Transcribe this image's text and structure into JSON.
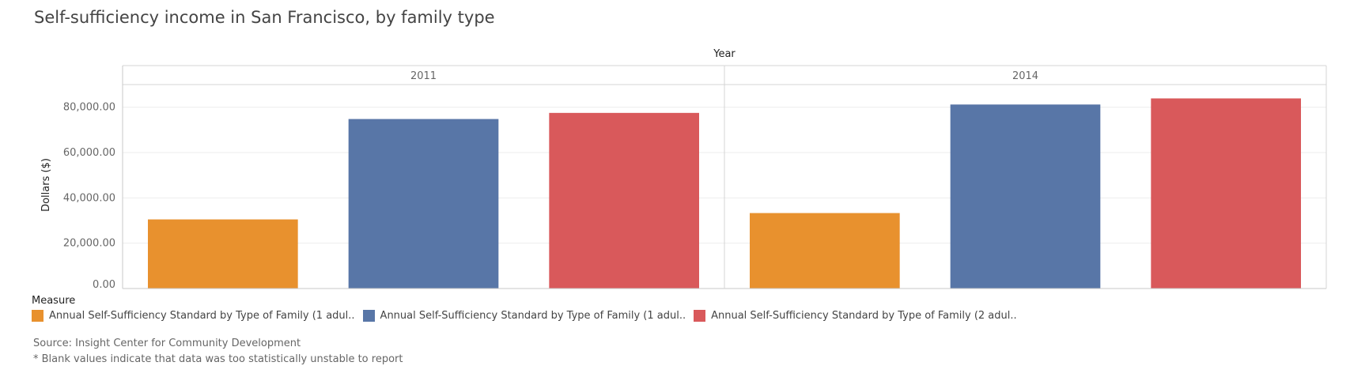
{
  "title": "Self-sufficiency income in San Francisco, by family type",
  "chart_data": {
    "type": "bar",
    "column_header": "Year",
    "categories": [
      "2011",
      "2014"
    ],
    "ylabel": "Dollars ($)",
    "ylim": [
      0,
      90000
    ],
    "yticks": [
      0,
      20000,
      40000,
      60000,
      80000
    ],
    "ytick_labels": [
      "0.00",
      "20,000.00",
      "40,000.00",
      "60,000.00",
      "80,000.00"
    ],
    "grid": true,
    "series": [
      {
        "name": "Annual Self-Sufficiency Standard by Type of Family (1 adul..",
        "color": "#e8912e",
        "values": [
          30500,
          33300
        ]
      },
      {
        "name": "Annual Self-Sufficiency Standard by Type of Family (1 adul..",
        "color": "#5876a7",
        "values": [
          74800,
          81200
        ]
      },
      {
        "name": "Annual Self-Sufficiency Standard by Type of Family (2 adul..",
        "color": "#d9595b",
        "values": [
          77500,
          83900
        ]
      }
    ]
  },
  "legend": {
    "title": "Measure",
    "placement": "bottom-left"
  },
  "footnotes": {
    "source": "Source: Insight Center for Community Development",
    "note": "* Blank values indicate that data was too statistically unstable to report"
  }
}
